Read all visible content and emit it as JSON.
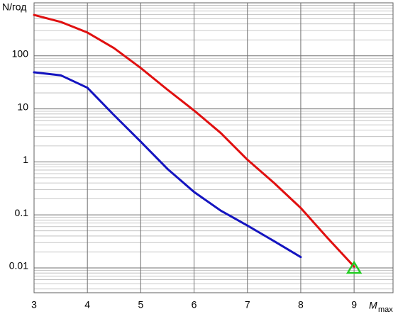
{
  "chart_data": {
    "type": "line",
    "y_label": "N/год",
    "x_label": "M",
    "x_label_sub": "max",
    "x": [
      3,
      3.5,
      4,
      4.5,
      5,
      5.5,
      6,
      6.5,
      7,
      7.5,
      8,
      8.5,
      9
    ],
    "series": [
      {
        "color": "#e01010",
        "values": [
          590,
          437,
          275,
          140,
          59,
          23,
          9.3,
          3.5,
          1.1,
          0.4,
          0.135,
          0.037,
          0.0106
        ]
      },
      {
        "color": "#1414c0",
        "values": [
          49,
          43,
          25,
          7.6,
          2.4,
          0.74,
          0.27,
          0.12,
          0.063,
          0.032,
          0.016,
          null,
          null
        ]
      }
    ],
    "marker": {
      "x": 9,
      "y": 0.01,
      "color": "#22cc22"
    },
    "xlim": [
      3,
      9.73
    ],
    "xticks": [
      3,
      4,
      5,
      6,
      7,
      8,
      9
    ],
    "ylim": [
      0.0034,
      1000
    ],
    "yticks": [
      0.01,
      0.1,
      1,
      10,
      100
    ],
    "log_y": true,
    "grid": true,
    "minor_grid": true
  }
}
